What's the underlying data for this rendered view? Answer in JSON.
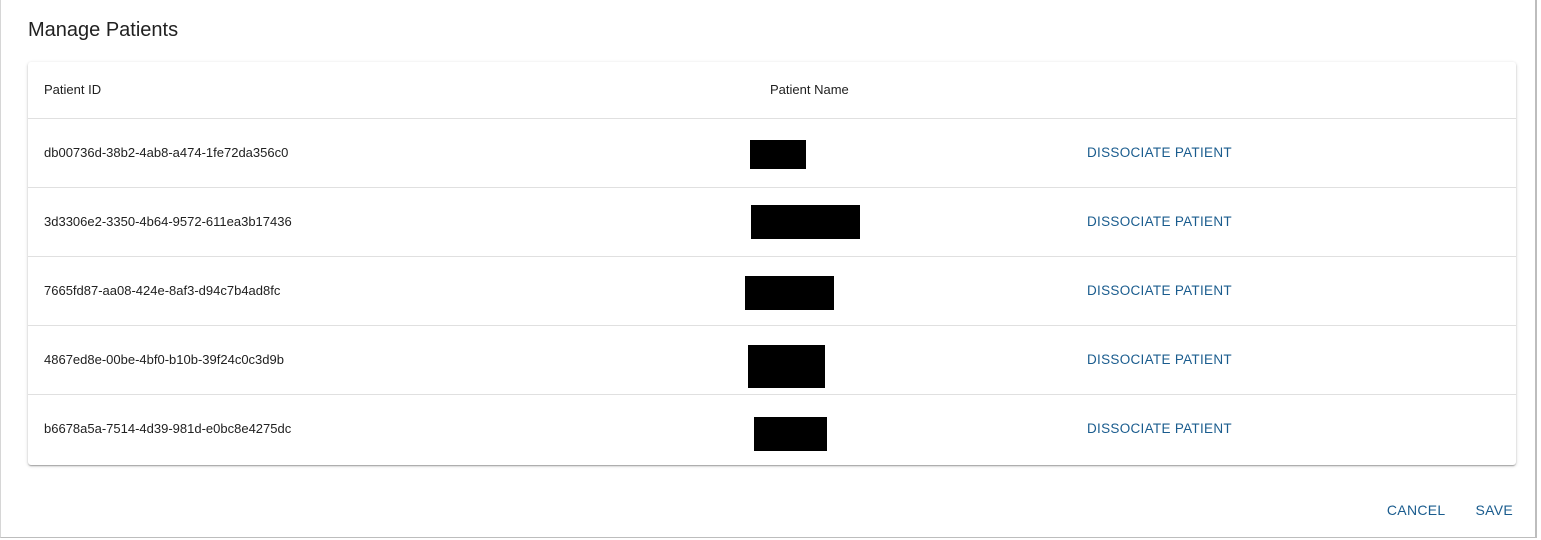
{
  "dialog": {
    "title": "Manage Patients"
  },
  "table": {
    "columns": [
      "Patient ID",
      "Patient Name",
      ""
    ],
    "rows": [
      {
        "id": "db00736d-38b2-4ab8-a474-1fe72da356c0",
        "name": "[redacted]",
        "action": "DISSOCIATE PATIENT"
      },
      {
        "id": "3d3306e2-3350-4b64-9572-611ea3b17436",
        "name": "[redacted]",
        "action": "DISSOCIATE PATIENT"
      },
      {
        "id": "7665fd87-aa08-424e-8af3-d94c7b4ad8fc",
        "name": "[redacted]",
        "action": "DISSOCIATE PATIENT"
      },
      {
        "id": "4867ed8e-00be-4bf0-b10b-39f24c0c3d9b",
        "name": "[redacted]",
        "action": "DISSOCIATE PATIENT"
      },
      {
        "id": "b6678a5a-7514-4d39-981d-e0bc8e4275dc",
        "name": "[redacted]",
        "action": "DISSOCIATE PATIENT"
      }
    ]
  },
  "footer": {
    "cancel_label": "CANCEL",
    "save_label": "SAVE"
  },
  "colors": {
    "accent": "#1a5c8e",
    "text": "#212121",
    "divider": "#e0e0e0",
    "redaction": "#000000"
  }
}
